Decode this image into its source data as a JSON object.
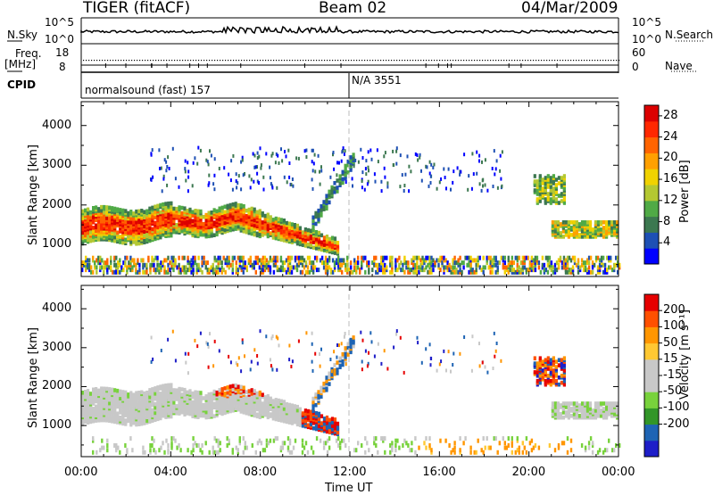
{
  "header": {
    "title_left": "TIGER (fitACF)",
    "title_center": "Beam 02",
    "title_right": "04/Mar/2009"
  },
  "summary_panel": {
    "nsky_label": "N.Sky",
    "nsky_ticks": [
      "10^5",
      "10^0"
    ],
    "nsearch_label": "N.Search",
    "nsearch_ticks": [
      "10^5",
      "10^0"
    ],
    "freq_label_1": "Freq.",
    "freq_label_2": "[MHz]",
    "freq_ticks": [
      "18",
      "8"
    ],
    "nave_label": "Nave",
    "nave_ticks": [
      "60",
      "0"
    ],
    "cpid_label": "CPID",
    "cpid_1": "normalsound (fast) 157",
    "cpid_2": "N/A 3551"
  },
  "colors": {
    "power": [
      "#0000ff",
      "#1e50b4",
      "#3c7850",
      "#50aa46",
      "#b4c832",
      "#f0d200",
      "#ffa000",
      "#ff6400",
      "#ff2800",
      "#dc0000"
    ],
    "velocity": [
      "#e60000",
      "#ff5000",
      "#ff9600",
      "#ffc832",
      "#c8c8c8",
      "#c8c8c8",
      "#78d23c",
      "#329628",
      "#1e64b4",
      "#1e1ec8"
    ]
  },
  "chart_data": [
    {
      "type": "heatmap",
      "name": "power",
      "ylabel": "Slant Range [km]",
      "ylim": [
        200,
        4600
      ],
      "yticks": [
        "1000",
        "2000",
        "3000",
        "4000"
      ],
      "xticks": [
        "00:00",
        "04:00",
        "08:00",
        "12:00",
        "16:00",
        "20:00",
        "00:00"
      ],
      "colorbar_label": "Power [dB]",
      "colorbar_ticks": [
        "4",
        "8",
        "12",
        "16",
        "20",
        "24",
        "28"
      ],
      "colorbar_range": [
        0,
        30
      ]
    },
    {
      "type": "heatmap",
      "name": "velocity",
      "ylabel": "Slant Range [km]",
      "ylim": [
        200,
        4600
      ],
      "yticks": [
        "1000",
        "2000",
        "3000",
        "4000"
      ],
      "xticks": [
        "00:00",
        "04:00",
        "08:00",
        "12:00",
        "16:00",
        "20:00",
        "00:00"
      ],
      "xlabel": "Time UT",
      "colorbar_label": "Velocity [m s⁻¹]",
      "colorbar_ticks": [
        "200",
        "100",
        "50",
        "15",
        "-15",
        "-50",
        "-100",
        "-200"
      ]
    }
  ]
}
